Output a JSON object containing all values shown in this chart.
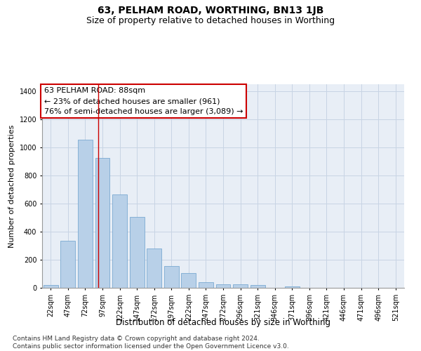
{
  "title": "63, PELHAM ROAD, WORTHING, BN13 1JB",
  "subtitle": "Size of property relative to detached houses in Worthing",
  "xlabel": "Distribution of detached houses by size in Worthing",
  "ylabel": "Number of detached properties",
  "categories": [
    "22sqm",
    "47sqm",
    "72sqm",
    "97sqm",
    "122sqm",
    "147sqm",
    "172sqm",
    "197sqm",
    "222sqm",
    "247sqm",
    "272sqm",
    "296sqm",
    "321sqm",
    "346sqm",
    "371sqm",
    "396sqm",
    "421sqm",
    "446sqm",
    "471sqm",
    "496sqm",
    "521sqm"
  ],
  "values": [
    22,
    335,
    1055,
    925,
    665,
    505,
    280,
    155,
    103,
    38,
    25,
    23,
    18,
    0,
    12,
    0,
    0,
    0,
    0,
    0,
    0
  ],
  "bar_color": "#b8d0e8",
  "bar_edge_color": "#6aa0cc",
  "grid_color": "#c8d4e4",
  "background_color": "#e8eef6",
  "annotation_line1": "63 PELHAM ROAD: 88sqm",
  "annotation_line2": "← 23% of detached houses are smaller (961)",
  "annotation_line3": "76% of semi-detached houses are larger (3,089) →",
  "vline_x": 2.75,
  "vline_color": "#cc0000",
  "ylim": [
    0,
    1450
  ],
  "yticks": [
    0,
    200,
    400,
    600,
    800,
    1000,
    1200,
    1400
  ],
  "footnote": "Contains HM Land Registry data © Crown copyright and database right 2024.\nContains public sector information licensed under the Open Government Licence v3.0.",
  "title_fontsize": 10,
  "subtitle_fontsize": 9,
  "xlabel_fontsize": 8.5,
  "ylabel_fontsize": 8,
  "tick_fontsize": 7,
  "annotation_fontsize": 8,
  "footnote_fontsize": 6.5
}
